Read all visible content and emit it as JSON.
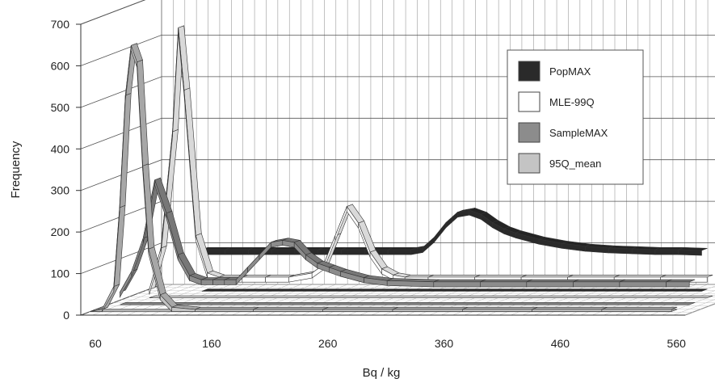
{
  "chart_data": {
    "type": "line",
    "style": "3d-ribbon",
    "xlabel": "Bq / kg",
    "ylabel": "Frequency",
    "xlim": [
      60,
      580
    ],
    "ylim": [
      0,
      700
    ],
    "xticks": [
      60,
      160,
      260,
      360,
      460,
      560
    ],
    "yticks": [
      0,
      100,
      200,
      300,
      400,
      500,
      600,
      700
    ],
    "grid": true,
    "legend_position": "top-right",
    "series": [
      {
        "name": "PopMAX",
        "color": "#2a2a2a",
        "x": [
          110,
          130,
          150,
          170,
          190,
          210,
          230,
          250,
          270,
          290,
          300,
          310,
          320,
          330,
          340,
          350,
          360,
          370,
          380,
          400,
          420,
          440,
          460,
          480,
          500,
          520,
          540
        ],
        "y": [
          100,
          100,
          100,
          100,
          100,
          100,
          100,
          100,
          100,
          100,
          105,
          130,
          165,
          190,
          195,
          185,
          165,
          150,
          140,
          125,
          115,
          108,
          104,
          102,
          100,
          100,
          98
        ]
      },
      {
        "name": "MLE-99Q",
        "color": "#ffffff",
        "x": [
          80,
          90,
          100,
          105,
          110,
          120,
          130,
          140,
          160,
          180,
          200,
          220,
          230,
          240,
          250,
          260,
          270,
          280,
          290,
          300,
          320,
          360,
          400,
          440,
          480,
          520,
          560
        ],
        "y": [
          20,
          120,
          400,
          650,
          500,
          150,
          60,
          50,
          50,
          50,
          50,
          60,
          80,
          150,
          220,
          180,
          110,
          70,
          55,
          50,
          50,
          50,
          50,
          50,
          50,
          50,
          50
        ]
      },
      {
        "name": "SampleMAX",
        "color": "#8c8c8c",
        "x": [
          70,
          80,
          90,
          100,
          110,
          120,
          130,
          140,
          150,
          160,
          170,
          180,
          190,
          200,
          210,
          220,
          230,
          240,
          250,
          260,
          280,
          300,
          340,
          380,
          420,
          460,
          500,
          540,
          560
        ],
        "y": [
          30,
          80,
          160,
          300,
          220,
          120,
          70,
          60,
          60,
          60,
          60,
          90,
          120,
          150,
          155,
          150,
          120,
          100,
          90,
          80,
          65,
          58,
          55,
          55,
          55,
          55,
          55,
          55,
          55
        ]
      },
      {
        "name": "95Q_mean",
        "color": "#c4c4c4",
        "x": [
          60,
          70,
          80,
          85,
          90,
          95,
          100,
          105,
          110,
          120,
          130,
          150,
          200,
          260,
          320,
          380,
          440,
          500,
          560
        ],
        "y": [
          0,
          5,
          60,
          250,
          520,
          640,
          600,
          350,
          150,
          40,
          10,
          5,
          5,
          5,
          5,
          5,
          5,
          5,
          5
        ]
      }
    ]
  }
}
